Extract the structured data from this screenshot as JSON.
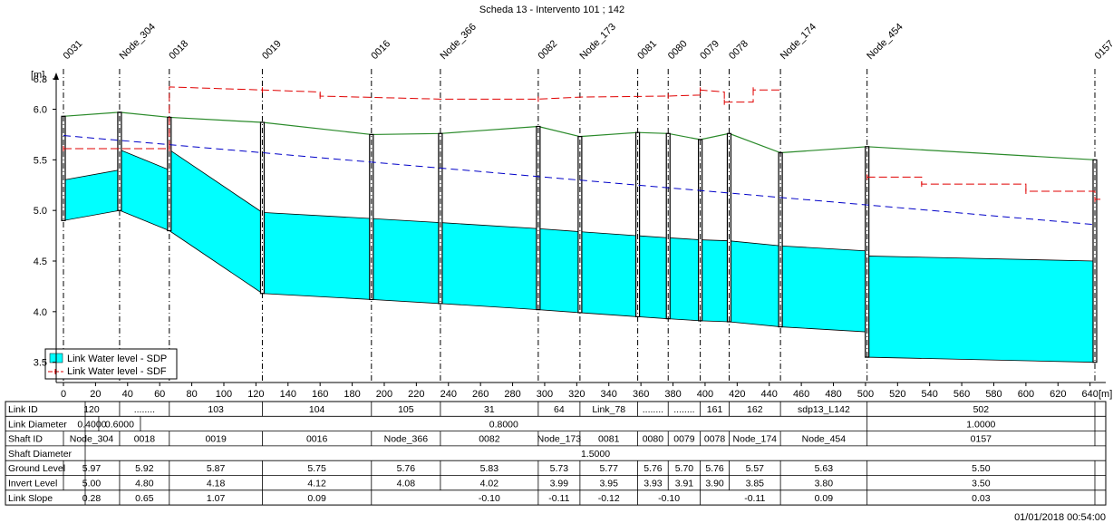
{
  "window_title": "Scheda 13 - Intervento 101 ; 142",
  "timestamp": "01/01/2018 00:54:00",
  "chart_data": {
    "type": "line",
    "title": "Scheda 13 - Intervento 101 ; 142",
    "ylabel": "[m]",
    "xlabel": "[m]",
    "ylim": [
      3.3,
      6.3
    ],
    "xlim": [
      -5,
      647
    ],
    "y_ticks": [
      "6.3",
      "6.0",
      "5.5",
      "5.0",
      "4.5",
      "4.0",
      "3.5"
    ],
    "y_tick_values": [
      6.3,
      6.0,
      5.5,
      5.0,
      4.5,
      4.0,
      3.5
    ],
    "x_ticks": [
      "0",
      "20",
      "40",
      "60",
      "80",
      "100",
      "120",
      "140",
      "160",
      "180",
      "200",
      "220",
      "240",
      "260",
      "280",
      "300",
      "320",
      "340",
      "360",
      "380",
      "400",
      "420",
      "440",
      "460",
      "480",
      "500",
      "520",
      "540",
      "560",
      "580",
      "600",
      "620",
      "640"
    ],
    "x_tick_values": [
      0,
      20,
      40,
      60,
      80,
      100,
      120,
      140,
      160,
      180,
      200,
      220,
      240,
      260,
      280,
      300,
      320,
      340,
      360,
      380,
      400,
      420,
      440,
      460,
      480,
      500,
      520,
      540,
      560,
      580,
      600,
      620,
      640
    ],
    "x_end_label": "[m]",
    "nodes": [
      {
        "name": "0031",
        "x": 0
      },
      {
        "name": "Node_304",
        "x": 35
      },
      {
        "name": "0018",
        "x": 66
      },
      {
        "name": "0019",
        "x": 124
      },
      {
        "name": "0016",
        "x": 192
      },
      {
        "name": "Node_366",
        "x": 235
      },
      {
        "name": "0082",
        "x": 296
      },
      {
        "name": "Node_173",
        "x": 322
      },
      {
        "name": "0081",
        "x": 358
      },
      {
        "name": "0080",
        "x": 377
      },
      {
        "name": "0079",
        "x": 397
      },
      {
        "name": "0078",
        "x": 415
      },
      {
        "name": "Node_174",
        "x": 447
      },
      {
        "name": "Node_454",
        "x": 501
      },
      {
        "name": "0157",
        "x": 643
      }
    ],
    "ground_profile": [
      {
        "x": 0,
        "y": 5.93
      },
      {
        "x": 35,
        "y": 5.97
      },
      {
        "x": 66,
        "y": 5.92
      },
      {
        "x": 124,
        "y": 5.87
      },
      {
        "x": 192,
        "y": 5.75
      },
      {
        "x": 235,
        "y": 5.76
      },
      {
        "x": 296,
        "y": 5.83
      },
      {
        "x": 322,
        "y": 5.73
      },
      {
        "x": 358,
        "y": 5.77
      },
      {
        "x": 377,
        "y": 5.76
      },
      {
        "x": 397,
        "y": 5.7
      },
      {
        "x": 415,
        "y": 5.76
      },
      {
        "x": 447,
        "y": 5.57
      },
      {
        "x": 501,
        "y": 5.63
      },
      {
        "x": 643,
        "y": 5.5
      }
    ],
    "link_segments": [
      {
        "x0": 0,
        "x1": 35,
        "top0": 5.3,
        "top1": 5.4,
        "bot0": 4.9,
        "bot1": 5.0
      },
      {
        "x0": 35,
        "x1": 66,
        "top0": 5.6,
        "top1": 5.4,
        "bot0": 5.0,
        "bot1": 4.8
      },
      {
        "x0": 66,
        "x1": 124,
        "top0": 5.6,
        "top1": 4.98,
        "bot0": 4.8,
        "bot1": 4.18
      },
      {
        "x0": 124,
        "x1": 192,
        "top0": 4.98,
        "top1": 4.92,
        "bot0": 4.18,
        "bot1": 4.12
      },
      {
        "x0": 192,
        "x1": 235,
        "top0": 4.92,
        "top1": 4.88,
        "bot0": 4.12,
        "bot1": 4.08
      },
      {
        "x0": 235,
        "x1": 296,
        "top0": 4.88,
        "top1": 4.82,
        "bot0": 4.08,
        "bot1": 4.02
      },
      {
        "x0": 296,
        "x1": 322,
        "top0": 4.82,
        "top1": 4.79,
        "bot0": 4.02,
        "bot1": 3.99
      },
      {
        "x0": 322,
        "x1": 358,
        "top0": 4.79,
        "top1": 4.75,
        "bot0": 3.99,
        "bot1": 3.95
      },
      {
        "x0": 358,
        "x1": 377,
        "top0": 4.75,
        "top1": 4.73,
        "bot0": 3.95,
        "bot1": 3.93
      },
      {
        "x0": 377,
        "x1": 397,
        "top0": 4.73,
        "top1": 4.71,
        "bot0": 3.93,
        "bot1": 3.91
      },
      {
        "x0": 397,
        "x1": 415,
        "top0": 4.71,
        "top1": 4.7,
        "bot0": 3.91,
        "bot1": 3.9
      },
      {
        "x0": 415,
        "x1": 447,
        "top0": 4.7,
        "top1": 4.65,
        "bot0": 3.9,
        "bot1": 3.85
      },
      {
        "x0": 447,
        "x1": 501,
        "top0": 4.65,
        "top1": 4.6,
        "bot0": 3.85,
        "bot1": 3.8
      },
      {
        "x0": 501,
        "x1": 643,
        "top0": 4.55,
        "top1": 4.5,
        "bot0": 3.55,
        "bot1": 3.5
      }
    ],
    "series": [
      {
        "name": "Link Water level - SDP",
        "color": "#00ffff",
        "kind": "area"
      },
      {
        "name": "Link Water level - SDF",
        "color": "#ff0000",
        "kind": "dashed-step",
        "points": [
          {
            "x": 0,
            "y": 5.61
          },
          {
            "x": 35,
            "y": 5.61
          },
          {
            "x": 66,
            "y": 5.61
          },
          {
            "x": 66,
            "y": 6.22
          },
          {
            "x": 124,
            "y": 6.19
          },
          {
            "x": 160,
            "y": 6.17
          },
          {
            "x": 160,
            "y": 6.13
          },
          {
            "x": 235,
            "y": 6.1
          },
          {
            "x": 296,
            "y": 6.1
          },
          {
            "x": 322,
            "y": 6.12
          },
          {
            "x": 377,
            "y": 6.13
          },
          {
            "x": 397,
            "y": 6.14
          },
          {
            "x": 397,
            "y": 6.19
          },
          {
            "x": 412,
            "y": 6.17
          },
          {
            "x": 412,
            "y": 6.07
          },
          {
            "x": 430,
            "y": 6.07
          },
          {
            "x": 430,
            "y": 6.19
          },
          {
            "x": 447,
            "y": 6.19
          }
        ],
        "points_b": [
          {
            "x": 501,
            "y": 5.33
          },
          {
            "x": 535,
            "y": 5.33
          },
          {
            "x": 535,
            "y": 5.26
          },
          {
            "x": 600,
            "y": 5.26
          },
          {
            "x": 600,
            "y": 5.19
          },
          {
            "x": 643,
            "y": 5.19
          },
          {
            "x": 643,
            "y": 5.11
          },
          {
            "x": 647,
            "y": 5.11
          }
        ]
      },
      {
        "name": "energy line",
        "color": "#0000c8",
        "kind": "dashed",
        "points": [
          {
            "x": 0,
            "y": 5.74
          },
          {
            "x": 643,
            "y": 4.86
          }
        ]
      }
    ],
    "legend": [
      "Link Water level - SDP",
      "Link Water level - SDF"
    ],
    "legend_position": "bottom-left"
  },
  "table": {
    "row_headers": [
      "Link ID",
      "Link Diameter",
      "Shaft ID",
      "Shaft Diameter",
      "Ground Level",
      "Invert Level",
      "Link Slope"
    ],
    "rows": {
      "link_id": [
        {
          "x0": 0,
          "x1": 35,
          "text": "120"
        },
        {
          "x0": 35,
          "x1": 66,
          "text": "........"
        },
        {
          "x0": 66,
          "x1": 124,
          "text": "103"
        },
        {
          "x0": 124,
          "x1": 192,
          "text": "104"
        },
        {
          "x0": 192,
          "x1": 235,
          "text": "105"
        },
        {
          "x0": 235,
          "x1": 296,
          "text": "31"
        },
        {
          "x0": 296,
          "x1": 322,
          "text": "64"
        },
        {
          "x0": 322,
          "x1": 358,
          "text": "Link_78"
        },
        {
          "x0": 358,
          "x1": 377,
          "text": "........"
        },
        {
          "x0": 377,
          "x1": 397,
          "text": "........"
        },
        {
          "x0": 397,
          "x1": 415,
          "text": "161"
        },
        {
          "x0": 415,
          "x1": 447,
          "text": "162"
        },
        {
          "x0": 447,
          "x1": 501,
          "text": "sdp13_L142"
        },
        {
          "x0": 501,
          "x1": 643,
          "text": "502"
        }
      ],
      "link_diameter": [
        {
          "x0": 0,
          "x1": 22,
          "text": "0.4000"
        },
        {
          "x0": 22,
          "x1": 48,
          "text": "0.6000"
        },
        {
          "x0": 48,
          "x1": 501,
          "text": "0.8000"
        },
        {
          "x0": 501,
          "x1": 643,
          "text": "1.0000"
        }
      ],
      "shaft_id": [
        "",
        "Node_304",
        "0018",
        "0019",
        "0016",
        "Node_366",
        "0082",
        "Node_173",
        "0081",
        "0080",
        "0079",
        "0078",
        "Node_174",
        "Node_454",
        "0157"
      ],
      "shaft_diameter": "1.5000",
      "ground_level": [
        "",
        "5.97",
        "5.92",
        "5.87",
        "5.75",
        "5.76",
        "5.83",
        "5.73",
        "5.77",
        "5.76",
        "5.70",
        "5.76",
        "5.57",
        "5.63",
        "5.50"
      ],
      "invert_level": [
        "",
        "5.00",
        "4.80",
        "4.18",
        "4.12",
        "4.08",
        "4.02",
        "3.99",
        "3.95",
        "3.93",
        "3.91",
        "3.90",
        "3.85",
        "3.80",
        "3.50"
      ],
      "link_slope": [
        "0.28",
        "0.65",
        "1.07",
        "0.09",
        "-0.10",
        "-0.11",
        "-0.12",
        "-0.10",
        "-0.11",
        "0.09",
        "0.03"
      ]
    }
  }
}
